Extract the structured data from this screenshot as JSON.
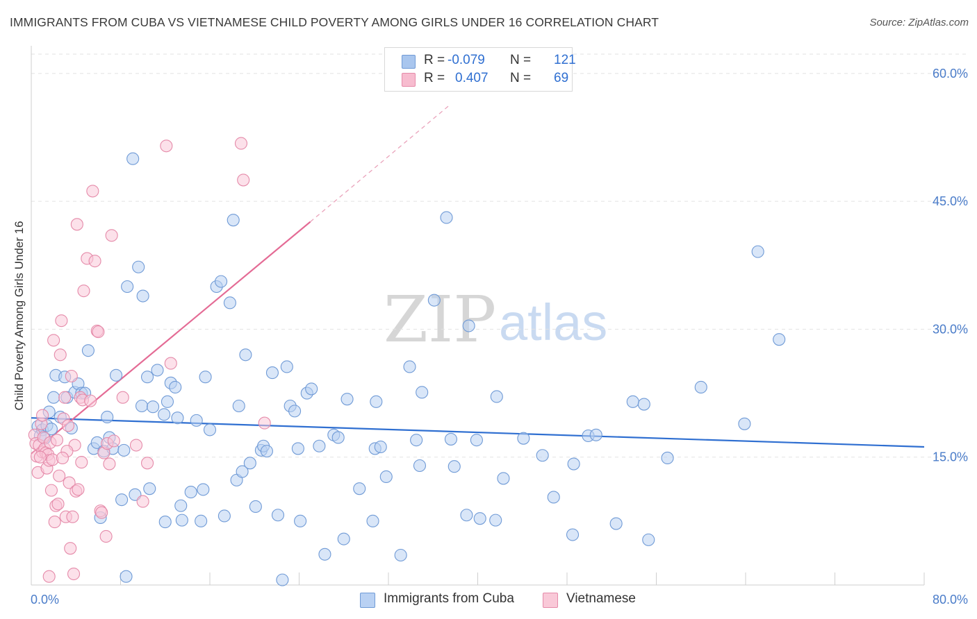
{
  "header": {
    "title": "IMMIGRANTS FROM CUBA VS VIETNAMESE CHILD POVERTY AMONG GIRLS UNDER 16 CORRELATION CHART",
    "source": "Source: ZipAtlas.com"
  },
  "watermark": {
    "zip": "ZIP",
    "atlas": "atlas"
  },
  "legend_top": {
    "rows": [
      {
        "r_label": "R =",
        "r_value": "-0.079",
        "n_label": "N =",
        "n_value": "121",
        "color": "#a9c6ee",
        "border": "#6f9ad6"
      },
      {
        "r_label": "R =",
        "r_value": "0.407",
        "n_label": "N =",
        "n_value": "69",
        "color": "#f7bccf",
        "border": "#e58aa9"
      }
    ]
  },
  "legend_bottom": {
    "items": [
      {
        "label": "Immigrants from Cuba",
        "color": "#b9d1f3",
        "border": "#6f9ad6"
      },
      {
        "label": "Vietnamese",
        "color": "#f9c9d8",
        "border": "#e58aa9"
      }
    ]
  },
  "chart_data": {
    "type": "scatter",
    "title": "IMMIGRANTS FROM CUBA VS VIETNAMESE CHILD POVERTY AMONG GIRLS UNDER 16 CORRELATION CHART",
    "xlabel": "",
    "ylabel": "Child Poverty Among Girls Under 16",
    "xlim": [
      0,
      80
    ],
    "ylim": [
      0,
      63
    ],
    "x_tick_labels": [
      "0.0%",
      "80.0%"
    ],
    "y_ticks": [
      15,
      30,
      45,
      60
    ],
    "y_tick_labels": [
      "15.0%",
      "30.0%",
      "45.0%",
      "60.0%"
    ],
    "grid": true,
    "legend_position": "bottom",
    "series": [
      {
        "name": "Immigrants from Cuba",
        "color": "#6f9ad6",
        "fill": "#b9d1f3",
        "trend": {
          "x": [
            0,
            80
          ],
          "y": [
            19.6,
            16.2
          ],
          "dashed_extension": false
        },
        "points": [
          [
            0.6,
            18.6
          ],
          [
            0.8,
            17.5
          ],
          [
            1.0,
            18.2
          ],
          [
            1.2,
            17.2
          ],
          [
            1.4,
            18.7
          ],
          [
            1.6,
            20.3
          ],
          [
            1.8,
            18.3
          ],
          [
            2.0,
            22.0
          ],
          [
            2.2,
            24.6
          ],
          [
            2.6,
            19.7
          ],
          [
            3.0,
            24.4
          ],
          [
            3.2,
            22.0
          ],
          [
            3.6,
            18.4
          ],
          [
            3.9,
            22.6
          ],
          [
            4.2,
            23.6
          ],
          [
            4.5,
            22.5
          ],
          [
            4.8,
            22.5
          ],
          [
            5.1,
            27.5
          ],
          [
            5.6,
            16.0
          ],
          [
            5.9,
            16.7
          ],
          [
            6.2,
            7.9
          ],
          [
            6.5,
            15.7
          ],
          [
            6.8,
            19.7
          ],
          [
            7.0,
            17.3
          ],
          [
            7.3,
            16.0
          ],
          [
            7.6,
            24.6
          ],
          [
            8.1,
            10.0
          ],
          [
            8.3,
            15.8
          ],
          [
            8.5,
            1.0
          ],
          [
            8.6,
            35.0
          ],
          [
            9.1,
            50.0
          ],
          [
            9.3,
            10.6
          ],
          [
            9.6,
            37.3
          ],
          [
            9.9,
            21.0
          ],
          [
            10.0,
            33.9
          ],
          [
            10.4,
            24.4
          ],
          [
            10.6,
            11.3
          ],
          [
            10.9,
            20.9
          ],
          [
            11.3,
            25.2
          ],
          [
            11.9,
            20.0
          ],
          [
            12.0,
            7.4
          ],
          [
            12.2,
            21.5
          ],
          [
            12.5,
            23.7
          ],
          [
            12.9,
            23.2
          ],
          [
            13.1,
            19.6
          ],
          [
            13.4,
            9.3
          ],
          [
            13.5,
            7.6
          ],
          [
            14.3,
            10.9
          ],
          [
            14.8,
            19.3
          ],
          [
            15.2,
            7.5
          ],
          [
            15.4,
            11.2
          ],
          [
            15.6,
            24.4
          ],
          [
            16.0,
            18.2
          ],
          [
            16.6,
            35.0
          ],
          [
            17.0,
            35.6
          ],
          [
            17.3,
            8.1
          ],
          [
            17.8,
            33.1
          ],
          [
            18.1,
            42.8
          ],
          [
            18.4,
            12.3
          ],
          [
            18.6,
            21.0
          ],
          [
            18.9,
            13.3
          ],
          [
            19.2,
            27.0
          ],
          [
            19.6,
            14.3
          ],
          [
            20.1,
            9.2
          ],
          [
            20.6,
            15.8
          ],
          [
            20.8,
            16.3
          ],
          [
            21.1,
            15.7
          ],
          [
            21.6,
            24.9
          ],
          [
            22.1,
            8.2
          ],
          [
            22.5,
            0.6
          ],
          [
            22.9,
            25.6
          ],
          [
            23.2,
            21.0
          ],
          [
            23.6,
            20.4
          ],
          [
            23.9,
            16.0
          ],
          [
            24.1,
            7.5
          ],
          [
            24.7,
            22.5
          ],
          [
            25.1,
            23.0
          ],
          [
            25.8,
            16.3
          ],
          [
            26.3,
            3.6
          ],
          [
            27.1,
            17.6
          ],
          [
            27.5,
            17.3
          ],
          [
            28.0,
            5.4
          ],
          [
            28.3,
            21.8
          ],
          [
            29.4,
            11.3
          ],
          [
            30.6,
            7.5
          ],
          [
            30.8,
            16.0
          ],
          [
            30.9,
            21.5
          ],
          [
            31.3,
            16.2
          ],
          [
            31.8,
            12.7
          ],
          [
            33.1,
            3.5
          ],
          [
            33.9,
            25.6
          ],
          [
            34.5,
            17.0
          ],
          [
            34.8,
            14.0
          ],
          [
            35.0,
            22.6
          ],
          [
            36.1,
            33.4
          ],
          [
            37.6,
            17.1
          ],
          [
            37.9,
            13.9
          ],
          [
            39.0,
            8.2
          ],
          [
            39.2,
            30.4
          ],
          [
            39.9,
            17.0
          ],
          [
            40.2,
            7.8
          ],
          [
            41.6,
            7.6
          ],
          [
            41.7,
            22.1
          ],
          [
            42.3,
            12.5
          ],
          [
            44.1,
            17.2
          ],
          [
            45.8,
            15.2
          ],
          [
            46.8,
            10.3
          ],
          [
            48.5,
            5.9
          ],
          [
            48.6,
            14.2
          ],
          [
            49.9,
            17.5
          ],
          [
            50.6,
            17.6
          ],
          [
            52.4,
            7.2
          ],
          [
            53.9,
            21.5
          ],
          [
            54.9,
            21.2
          ],
          [
            55.3,
            5.3
          ],
          [
            57.0,
            14.9
          ],
          [
            60.0,
            23.2
          ],
          [
            63.9,
            18.9
          ],
          [
            65.1,
            39.1
          ],
          [
            67.0,
            28.8
          ],
          [
            37.2,
            43.1
          ]
        ]
      },
      {
        "name": "Vietnamese",
        "color": "#e58aa9",
        "fill": "#f9c9d8",
        "trend": {
          "x": [
            0,
            25
          ],
          "y": [
            15.4,
            42.6
          ],
          "dashed_extension": true,
          "dashed_x": [
            25,
            37.4
          ],
          "dashed_y": [
            42.6,
            56.2
          ]
        },
        "points": [
          [
            0.3,
            17.6
          ],
          [
            0.4,
            16.6
          ],
          [
            0.5,
            15.1
          ],
          [
            0.6,
            13.2
          ],
          [
            0.7,
            16.4
          ],
          [
            0.9,
            18.9
          ],
          [
            1.0,
            15.6
          ],
          [
            1.1,
            17.3
          ],
          [
            1.2,
            16.0
          ],
          [
            1.3,
            15.5
          ],
          [
            1.4,
            13.7
          ],
          [
            1.5,
            15.3
          ],
          [
            1.6,
            14.6
          ],
          [
            1.7,
            16.7
          ],
          [
            1.8,
            11.1
          ],
          [
            1.9,
            14.7
          ],
          [
            2.0,
            28.7
          ],
          [
            2.1,
            7.4
          ],
          [
            2.2,
            9.3
          ],
          [
            2.3,
            17.0
          ],
          [
            2.5,
            12.8
          ],
          [
            2.6,
            27.0
          ],
          [
            2.7,
            31.0
          ],
          [
            2.9,
            19.5
          ],
          [
            3.0,
            22.0
          ],
          [
            3.1,
            8.0
          ],
          [
            3.3,
            18.7
          ],
          [
            3.4,
            12.0
          ],
          [
            3.5,
            4.3
          ],
          [
            3.6,
            24.5
          ],
          [
            3.7,
            8.0
          ],
          [
            3.8,
            1.3
          ],
          [
            3.9,
            16.4
          ],
          [
            4.0,
            11.0
          ],
          [
            4.2,
            11.2
          ],
          [
            4.4,
            22.0
          ],
          [
            4.5,
            14.4
          ],
          [
            4.6,
            21.7
          ],
          [
            4.7,
            34.5
          ],
          [
            5.0,
            38.3
          ],
          [
            5.3,
            21.6
          ],
          [
            5.5,
            46.2
          ],
          [
            5.7,
            38.0
          ],
          [
            5.9,
            29.8
          ],
          [
            6.0,
            29.7
          ],
          [
            6.2,
            8.7
          ],
          [
            6.3,
            8.5
          ],
          [
            6.5,
            15.5
          ],
          [
            6.7,
            5.7
          ],
          [
            6.8,
            16.6
          ],
          [
            7.0,
            14.2
          ],
          [
            7.2,
            41.0
          ],
          [
            7.4,
            16.9
          ],
          [
            8.2,
            22.0
          ],
          [
            9.4,
            16.4
          ],
          [
            10.0,
            9.8
          ],
          [
            10.4,
            14.3
          ],
          [
            12.1,
            51.5
          ],
          [
            12.5,
            26.0
          ],
          [
            18.8,
            51.8
          ],
          [
            19.0,
            47.5
          ],
          [
            20.9,
            19.0
          ],
          [
            4.1,
            42.3
          ],
          [
            1.0,
            19.9
          ],
          [
            0.8,
            15.0
          ],
          [
            2.4,
            9.5
          ],
          [
            1.6,
            1.0
          ],
          [
            3.2,
            15.7
          ],
          [
            2.8,
            14.9
          ]
        ]
      }
    ]
  }
}
